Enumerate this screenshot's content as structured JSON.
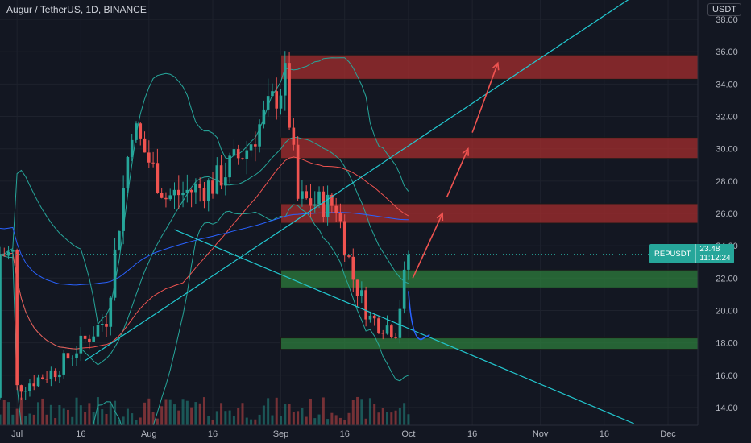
{
  "header": {
    "title": "Augur / TetherUS, 1D, BINANCE",
    "currency": "USDT"
  },
  "price_tag": {
    "symbol": "REPUSDT",
    "price": "23.48",
    "countdown": "11:12:24"
  },
  "colors": {
    "background": "#131722",
    "up": "#26a69a",
    "down": "#ef5350",
    "trendline": "#22c7cf",
    "resistance_zone": "#8b2c2c",
    "support_zone": "#2e6b3c",
    "bollinger": "#26a69a",
    "ma_long": "#2962ff",
    "ma_mid": "#ef5350"
  },
  "chart_data": {
    "type": "candlestick",
    "y_axis": {
      "ticks": [
        "14.00",
        "16.00",
        "18.00",
        "20.00",
        "22.00",
        "24.00",
        "26.00",
        "28.00",
        "30.00",
        "32.00",
        "34.00",
        "36.00",
        "38.00"
      ],
      "range": [
        12.9,
        39.2
      ]
    },
    "x_axis": {
      "ticks": [
        "Jul",
        "16",
        "Aug",
        "16",
        "Sep",
        "16",
        "Oct",
        "16",
        "Nov",
        "16",
        "Dec"
      ],
      "range": [
        "2020-06-27",
        "2020-12-08"
      ]
    },
    "last_close": 23.48,
    "resistance_zones": [
      [
        34.3,
        35.8
      ],
      [
        29.4,
        30.7
      ],
      [
        25.4,
        26.6
      ]
    ],
    "support_zones": [
      [
        21.4,
        22.5
      ],
      [
        17.6,
        18.3
      ]
    ],
    "candles_sampled": [
      {
        "t": "2020-07-01",
        "c": 15.2
      },
      {
        "t": "2020-07-10",
        "c": 16.3
      },
      {
        "t": "2020-07-16",
        "c": 17.9
      },
      {
        "t": "2020-07-22",
        "c": 19.5
      },
      {
        "t": "2020-07-26",
        "c": 27.5
      },
      {
        "t": "2020-07-28",
        "c": 31.5
      },
      {
        "t": "2020-08-05",
        "c": 27.0
      },
      {
        "t": "2020-08-16",
        "c": 27.8
      },
      {
        "t": "2020-08-24",
        "c": 30.0
      },
      {
        "t": "2020-09-02",
        "c": 34.3
      },
      {
        "t": "2020-09-05",
        "c": 26.8
      },
      {
        "t": "2020-09-14",
        "c": 26.5
      },
      {
        "t": "2020-09-18",
        "c": 22.0
      },
      {
        "t": "2020-09-22",
        "c": 19.5
      },
      {
        "t": "2020-09-28",
        "c": 18.8
      },
      {
        "t": "2020-10-01",
        "c": 23.48
      }
    ]
  }
}
